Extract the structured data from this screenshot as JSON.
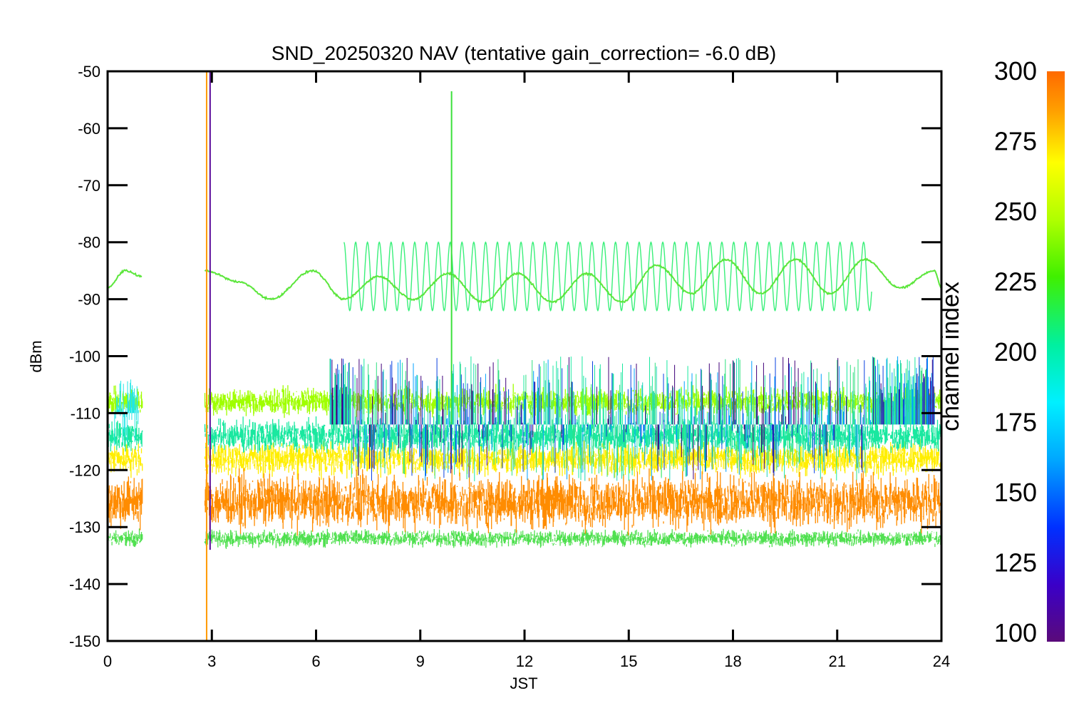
{
  "chart_data": {
    "type": "line",
    "title": "SND_20250320 NAV (tentative gain_correction= -6.0 dB)",
    "xlabel": "JST",
    "ylabel": "dBm",
    "xlim": [
      0,
      24
    ],
    "ylim": [
      -150,
      -50
    ],
    "xticks": [
      0,
      3,
      6,
      9,
      12,
      15,
      18,
      21,
      24
    ],
    "yticks": [
      -50,
      -60,
      -70,
      -80,
      -90,
      -100,
      -110,
      -120,
      -130,
      -140,
      -150
    ],
    "colorbar": {
      "label": "channel index",
      "range": [
        100,
        300
      ],
      "ticks": [
        300,
        275,
        250,
        225,
        200,
        175,
        150,
        125,
        100
      ]
    },
    "data_gap": [
      1.0,
      2.8
    ],
    "grid": false,
    "series": [
      {
        "channel": 290,
        "color": "#ff8c00",
        "description": "noise band",
        "center": -125.5,
        "spread": 5
      },
      {
        "channel": 275,
        "color": "#ffee00",
        "center": -118,
        "spread": 3
      },
      {
        "channel": 255,
        "color": "#a0ff00",
        "center": -108,
        "spread": 2.5
      },
      {
        "channel": 205,
        "color": "#1ae8a0",
        "center": -114,
        "spread": 3
      },
      {
        "channel": 240,
        "color": "#50e050",
        "center": -132,
        "spread": 1.5
      },
      {
        "channel": 245,
        "color": "#5ce63c",
        "description": "slow sinusoid",
        "x": [
          0,
          0.5,
          1.0,
          2.8,
          3.8,
          4.7,
          5.9,
          6.8,
          7.8,
          8.8,
          9.8,
          10.8,
          11.8,
          12.8,
          13.8,
          14.8,
          15.8,
          16.8,
          17.8,
          18.8,
          19.8,
          20.8,
          21.8,
          22.8,
          23.8,
          24
        ],
        "y": [
          -88,
          -85,
          -86,
          -85,
          -87,
          -90,
          -85,
          -90,
          -86,
          -90,
          -85.5,
          -90.5,
          -85.5,
          -90.5,
          -85.5,
          -90.5,
          -84,
          -89,
          -83,
          -89,
          -83,
          -89,
          -83,
          -88,
          -85,
          -88
        ]
      },
      {
        "channel": 230,
        "color": "#3af07a",
        "description": "fast oscillation",
        "x_start": 6.8,
        "x_end": 22.0,
        "upper": -80,
        "lower": -92
      }
    ],
    "annotations": [
      {
        "x": 2.85,
        "y_top": -50,
        "y_bottom": -150,
        "color": "#ff9900"
      },
      {
        "x": 2.95,
        "y_top": -50,
        "y_bottom": -134,
        "color": "#5a0a9a"
      },
      {
        "x": 9.9,
        "y_top": -53.5,
        "y_bottom": -112,
        "color": "#3ae03a"
      }
    ]
  }
}
